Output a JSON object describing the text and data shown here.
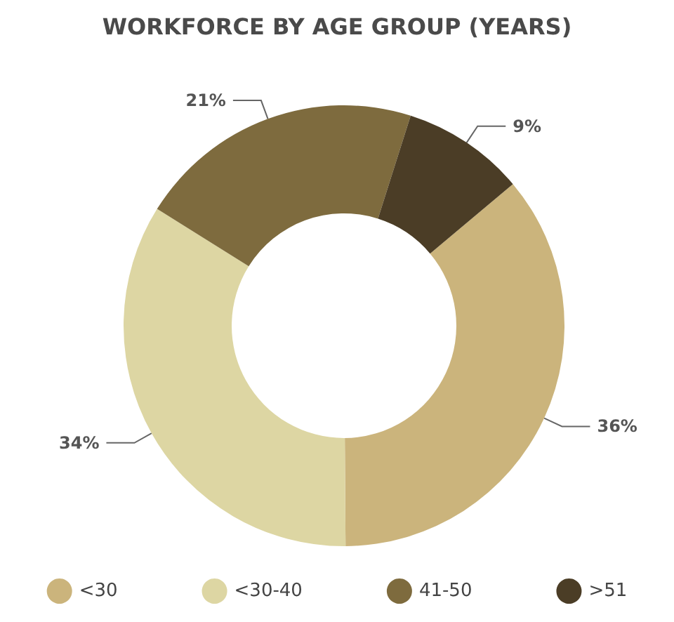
{
  "chart_data": {
    "type": "donut",
    "title": "WORKFORCE BY AGE GROUP (YEARS)",
    "categories": [
      "<30",
      "<30-40",
      "41-50",
      ">51"
    ],
    "values": [
      36,
      34,
      21,
      9
    ],
    "colors": [
      "#cbb47c",
      "#ddd6a3",
      "#7e6b3e",
      "#4b3d26"
    ],
    "value_labels": [
      "36%",
      "34%",
      "21%",
      "9%"
    ],
    "legend": "bottom"
  }
}
